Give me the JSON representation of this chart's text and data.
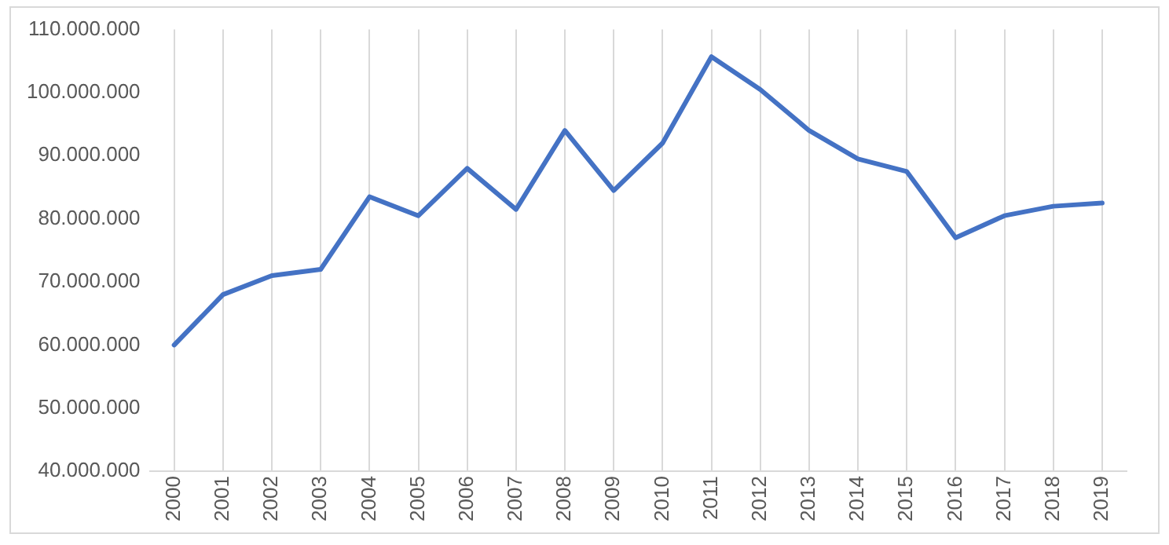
{
  "chart_data": {
    "type": "line",
    "categories": [
      "2000",
      "2001",
      "2002",
      "2003",
      "2004",
      "2005",
      "2006",
      "2007",
      "2008",
      "2009",
      "2010",
      "2011",
      "2012",
      "2013",
      "2014",
      "2015",
      "2016",
      "2017",
      "2018",
      "2019"
    ],
    "series": [
      {
        "color": "#4472c4",
        "values": [
          60000000,
          68000000,
          71000000,
          72000000,
          83500000,
          80500000,
          88000000,
          81500000,
          94000000,
          84500000,
          92000000,
          105700000,
          100500000,
          94000000,
          89500000,
          87500000,
          77000000,
          80500000,
          82000000,
          82500000
        ]
      }
    ],
    "ylim": [
      40000000,
      110000000
    ],
    "yticks": [
      {
        "value": 40000000,
        "label": "40.000.000"
      },
      {
        "value": 50000000,
        "label": "50.000.000"
      },
      {
        "value": 60000000,
        "label": "60.000.000"
      },
      {
        "value": 70000000,
        "label": "70.000.000"
      },
      {
        "value": 80000000,
        "label": "80.000.000"
      },
      {
        "value": 90000000,
        "label": "90.000.000"
      },
      {
        "value": 100000000,
        "label": "100.000.000"
      },
      {
        "value": 110000000,
        "label": "110.000.000"
      }
    ],
    "grid": "x",
    "legend": false,
    "marker": "none",
    "line_style": "solid"
  }
}
